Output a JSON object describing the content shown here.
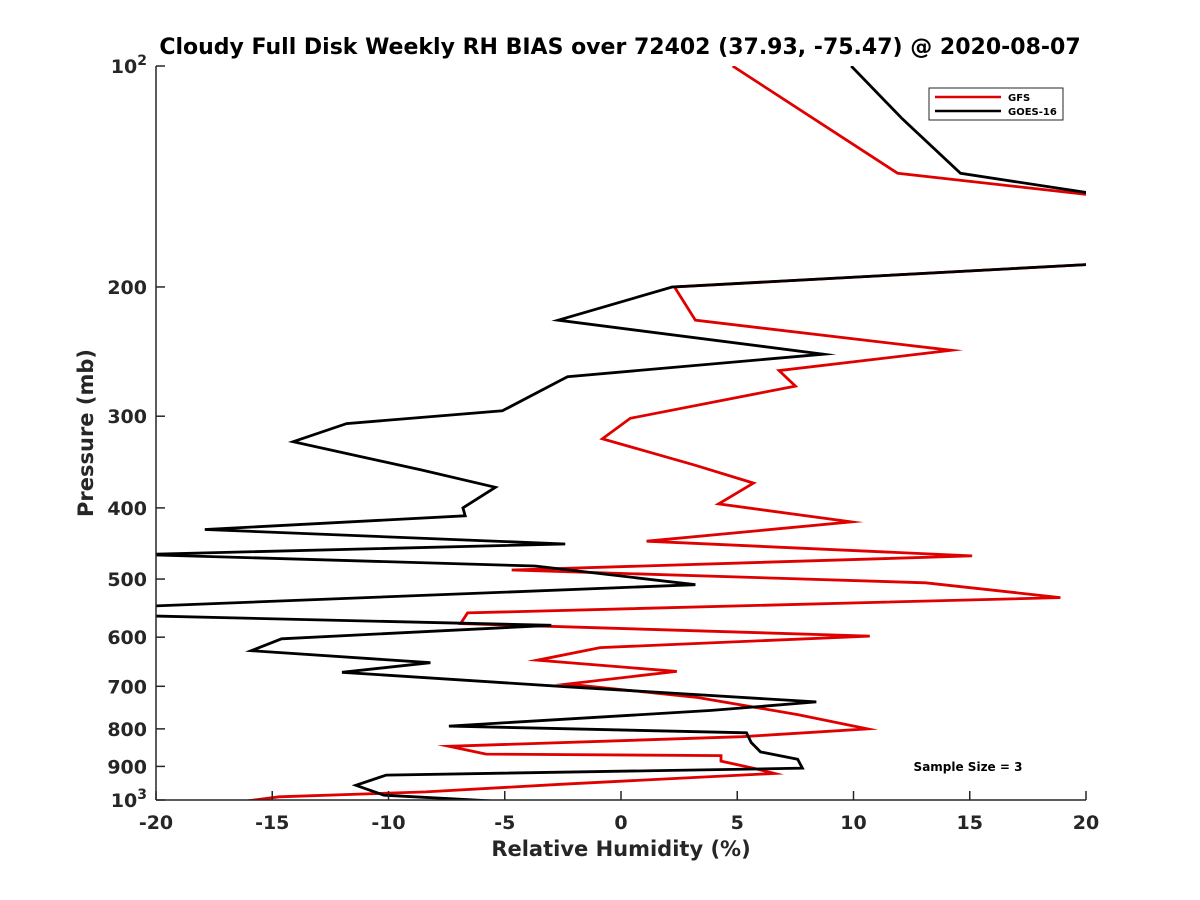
{
  "chart_data": {
    "type": "line",
    "title": "Cloudy Full Disk Weekly RH BIAS over 72402 (37.93, -75.47) @ 2020-08-07",
    "xlabel": "Relative Humidity (%)",
    "ylabel": "Pressure (mb)",
    "xlim": [
      -20,
      20
    ],
    "ylim": [
      100,
      1000
    ],
    "yscale": "log",
    "y_reversed": true,
    "grid": false,
    "legend_position": "top-right",
    "xticks": [
      {
        "value": -20,
        "label": "-20"
      },
      {
        "value": -15,
        "label": "-15"
      },
      {
        "value": -10,
        "label": "-10"
      },
      {
        "value": -5,
        "label": "-5"
      },
      {
        "value": 0,
        "label": "0"
      },
      {
        "value": 5,
        "label": "5"
      },
      {
        "value": 10,
        "label": "10"
      },
      {
        "value": 15,
        "label": "15"
      },
      {
        "value": 20,
        "label": "20"
      }
    ],
    "yticks": [
      {
        "value": 100,
        "base": "10",
        "exp": "2"
      },
      {
        "value": 200,
        "base": "200",
        "exp": ""
      },
      {
        "value": 300,
        "base": "300",
        "exp": ""
      },
      {
        "value": 400,
        "base": "400",
        "exp": ""
      },
      {
        "value": 500,
        "base": "500",
        "exp": ""
      },
      {
        "value": 600,
        "base": "600",
        "exp": ""
      },
      {
        "value": 700,
        "base": "700",
        "exp": ""
      },
      {
        "value": 800,
        "base": "800",
        "exp": ""
      },
      {
        "value": 900,
        "base": "900",
        "exp": ""
      },
      {
        "value": 1000,
        "base": "10",
        "exp": "3"
      }
    ],
    "annotation": "Sample Size = 3",
    "series": [
      {
        "name": "GFS",
        "color": "#e00000",
        "x": [
          4.8,
          11.9,
          22,
          22,
          2.3,
          3.2,
          14.2,
          6.8,
          7.5,
          0.4,
          -0.8,
          3.2,
          5.7,
          4.2,
          9.9,
          1.1,
          15.1,
          -4.7,
          13.1,
          18.9,
          -6.6,
          -6.9,
          10.7,
          -0.9,
          -3.6,
          2.4,
          -2.3,
          3.3,
          7.6,
          10.6,
          5.2,
          -7.4,
          -5.8,
          4.3,
          4.3,
          5.7,
          6.6,
          -2.6,
          -8.4,
          -14.7,
          -16.3,
          -14.9
        ],
        "y": [
          100,
          140,
          152,
          185,
          200,
          222,
          244,
          260,
          273,
          302,
          322,
          350,
          370,
          395,
          418,
          444,
          465,
          486,
          506,
          530,
          556,
          575,
          598,
          620,
          645,
          668,
          695,
          725,
          765,
          800,
          820,
          845,
          866,
          870,
          885,
          905,
          920,
          952,
          975,
          990,
          1005,
          1015
        ]
      },
      {
        "name": "GOES-16",
        "color": "#000000",
        "x": [
          9.9,
          12.1,
          14.6,
          22,
          22,
          2.2,
          -2.7,
          8.7,
          -2.3,
          -5.1,
          -11.8,
          -14.1,
          -8.6,
          -5.4,
          -6.8,
          -6.7,
          -17.9,
          -2.4,
          -20.7,
          -3.7,
          3.2,
          -20.7,
          -20.7,
          -3.0,
          -14.6,
          -15.9,
          -8.2,
          -12.0,
          -2.3,
          8.4,
          3.9,
          -7.4,
          5.4,
          5.6,
          6.0,
          7.6,
          7.8,
          -10.1,
          -11.4,
          -10.2,
          -2.5
        ],
        "y": [
          100,
          118,
          140,
          152,
          185,
          200,
          222,
          247,
          265,
          295,
          307,
          325,
          355,
          375,
          400,
          410,
          428,
          448,
          463,
          480,
          509,
          545,
          561,
          578,
          603,
          626,
          650,
          670,
          701,
          735,
          755,
          793,
          810,
          835,
          860,
          880,
          905,
          925,
          955,
          985,
          1015
        ]
      }
    ]
  }
}
